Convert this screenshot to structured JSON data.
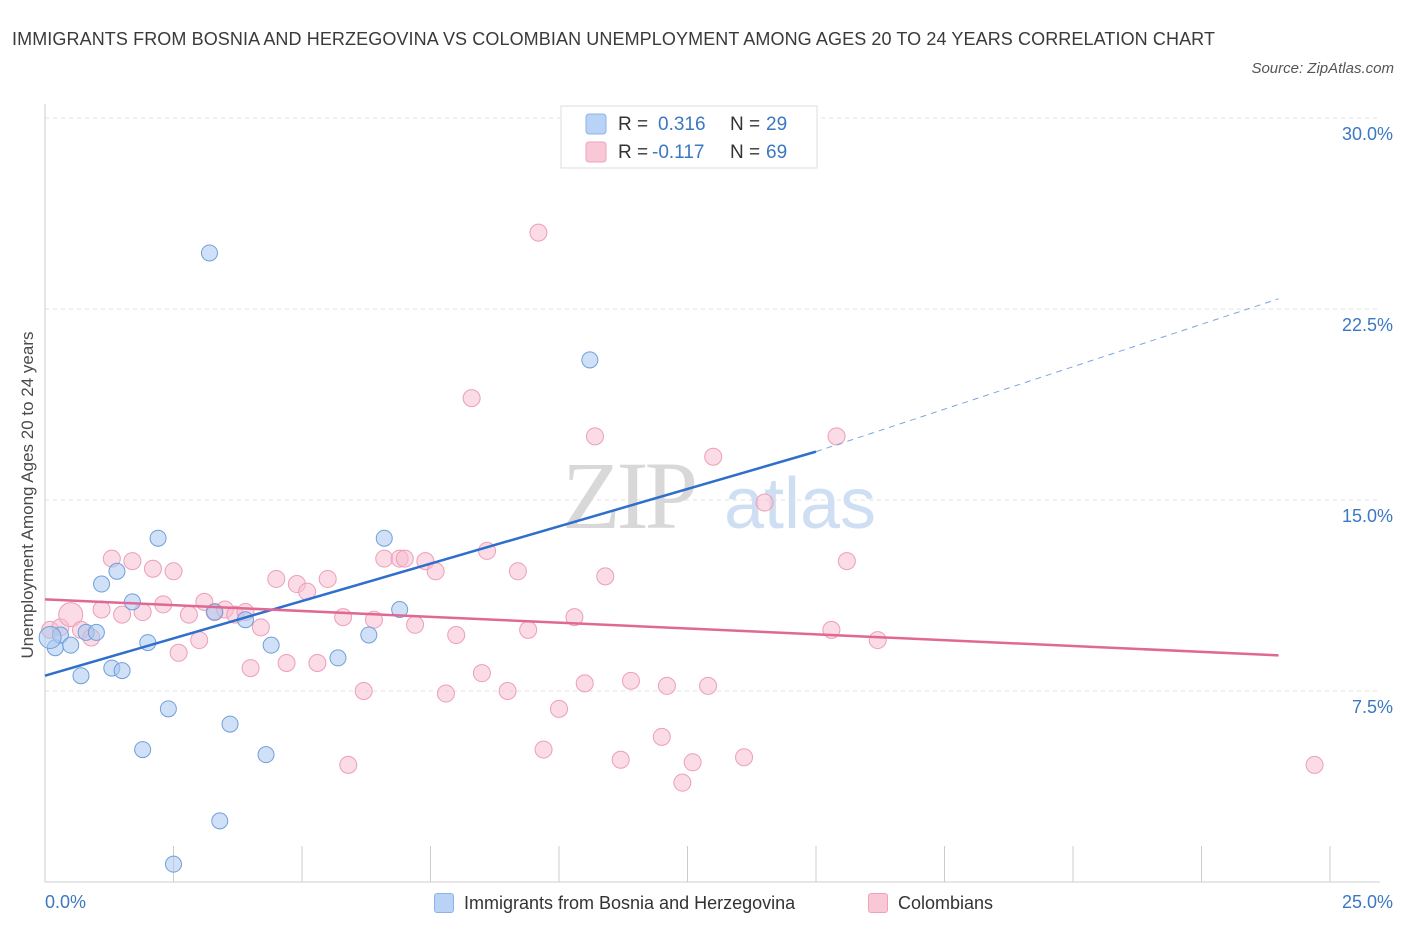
{
  "title": "IMMIGRANTS FROM BOSNIA AND HERZEGOVINA VS COLOMBIAN UNEMPLOYMENT AMONG AGES 20 TO 24 YEARS CORRELATION CHART",
  "source": "Source: ZipAtlas.com",
  "watermark": {
    "zip": "ZIP",
    "atlas": "atlas"
  },
  "legend_top": {
    "r_label": "R =",
    "n_label": "N =",
    "rows": [
      {
        "r": "0.316",
        "n": "29"
      },
      {
        "r": "-0.117",
        "n": "69"
      }
    ]
  },
  "chart_data": {
    "type": "scatter",
    "title": "IMMIGRANTS FROM BOSNIA AND HERZEGOVINA VS COLOMBIAN UNEMPLOYMENT AMONG AGES 20 TO 24 YEARS CORRELATION CHART",
    "xlabel": "",
    "ylabel": "Unemployment Among Ages 20 to 24 years",
    "xlim": [
      0,
      25
    ],
    "ylim": [
      0,
      30
    ],
    "x_tick_labels": [
      "0.0%",
      "25.0%"
    ],
    "y_ticks": [
      7.5,
      15,
      22.5,
      30
    ],
    "y_tick_labels": [
      "7.5%",
      "15.0%",
      "22.5%",
      "30.0%"
    ],
    "grid": true,
    "legend_placement": "top-center and bottom",
    "colors": {
      "bosnia": "#a9c8f0",
      "bosnia_line": "#2f6fcc",
      "colombia": "#f7bdd0",
      "colombia_line": "#e06892"
    },
    "series": [
      {
        "name": "Immigrants from Bosnia and Herzegovina",
        "r": 0.316,
        "n": 29,
        "trend": {
          "x0": 0,
          "y0": 8.1,
          "x1": 15,
          "y1": 16.9,
          "dash_to_x": 24,
          "dash_to_y": 22.9
        },
        "points": [
          [
            0.2,
            9.2
          ],
          [
            0.3,
            9.7
          ],
          [
            0.5,
            9.3
          ],
          [
            0.7,
            8.1
          ],
          [
            0.8,
            9.8
          ],
          [
            1.0,
            9.8
          ],
          [
            1.1,
            11.7
          ],
          [
            1.3,
            8.4
          ],
          [
            1.4,
            12.2
          ],
          [
            1.5,
            8.3
          ],
          [
            1.7,
            11.0
          ],
          [
            1.9,
            5.2
          ],
          [
            2.0,
            9.4
          ],
          [
            2.2,
            13.5
          ],
          [
            2.4,
            6.8
          ],
          [
            2.5,
            0.7
          ],
          [
            3.2,
            24.7
          ],
          [
            3.3,
            10.6
          ],
          [
            3.4,
            2.4
          ],
          [
            3.6,
            6.2
          ],
          [
            3.9,
            10.3
          ],
          [
            4.3,
            5.0
          ],
          [
            4.4,
            9.3
          ],
          [
            5.7,
            8.8
          ],
          [
            6.3,
            9.7
          ],
          [
            6.6,
            13.5
          ],
          [
            6.9,
            10.7
          ],
          [
            10.6,
            20.5
          ],
          [
            0.1,
            9.6
          ]
        ]
      },
      {
        "name": "Colombians",
        "r": -0.117,
        "n": 69,
        "trend": {
          "x0": 0,
          "y0": 11.1,
          "x1": 24,
          "y1": 8.9
        },
        "points": [
          [
            0.1,
            9.9
          ],
          [
            0.3,
            10.0
          ],
          [
            0.5,
            10.5
          ],
          [
            0.7,
            9.9
          ],
          [
            0.9,
            9.6
          ],
          [
            1.1,
            10.7
          ],
          [
            1.3,
            12.7
          ],
          [
            1.5,
            10.5
          ],
          [
            1.7,
            12.6
          ],
          [
            1.9,
            10.6
          ],
          [
            2.1,
            12.3
          ],
          [
            2.3,
            10.9
          ],
          [
            2.5,
            12.2
          ],
          [
            2.6,
            9.0
          ],
          [
            2.8,
            10.5
          ],
          [
            3.0,
            9.5
          ],
          [
            3.1,
            11.0
          ],
          [
            3.3,
            10.6
          ],
          [
            3.5,
            10.7
          ],
          [
            3.7,
            10.5
          ],
          [
            3.9,
            10.6
          ],
          [
            4.0,
            8.4
          ],
          [
            4.2,
            10.0
          ],
          [
            4.5,
            11.9
          ],
          [
            4.7,
            8.6
          ],
          [
            4.9,
            11.7
          ],
          [
            5.1,
            11.4
          ],
          [
            5.3,
            8.6
          ],
          [
            5.5,
            11.9
          ],
          [
            5.8,
            10.4
          ],
          [
            5.9,
            4.6
          ],
          [
            6.2,
            7.5
          ],
          [
            6.4,
            10.3
          ],
          [
            6.6,
            12.7
          ],
          [
            6.9,
            12.7
          ],
          [
            7.0,
            12.7
          ],
          [
            7.2,
            10.1
          ],
          [
            7.4,
            12.6
          ],
          [
            7.6,
            12.2
          ],
          [
            7.8,
            7.4
          ],
          [
            8.0,
            9.7
          ],
          [
            8.3,
            19.0
          ],
          [
            8.5,
            8.2
          ],
          [
            8.6,
            13.0
          ],
          [
            9.0,
            7.5
          ],
          [
            9.2,
            12.2
          ],
          [
            9.4,
            9.9
          ],
          [
            9.6,
            25.5
          ],
          [
            9.7,
            5.2
          ],
          [
            10.0,
            6.8
          ],
          [
            10.3,
            10.4
          ],
          [
            10.5,
            7.8
          ],
          [
            10.7,
            17.5
          ],
          [
            10.9,
            12.0
          ],
          [
            11.2,
            4.8
          ],
          [
            11.4,
            7.9
          ],
          [
            12.0,
            5.7
          ],
          [
            12.1,
            7.7
          ],
          [
            12.4,
            3.9
          ],
          [
            12.6,
            4.7
          ],
          [
            12.9,
            7.7
          ],
          [
            13.0,
            16.7
          ],
          [
            13.6,
            4.9
          ],
          [
            14.0,
            14.9
          ],
          [
            15.3,
            9.9
          ],
          [
            15.4,
            17.5
          ],
          [
            15.6,
            12.6
          ],
          [
            16.2,
            9.5
          ],
          [
            24.7,
            4.6
          ]
        ]
      }
    ]
  },
  "legend_bottom": [
    {
      "label": "Immigrants from Bosnia and Herzegovina"
    },
    {
      "label": "Colombians"
    }
  ]
}
